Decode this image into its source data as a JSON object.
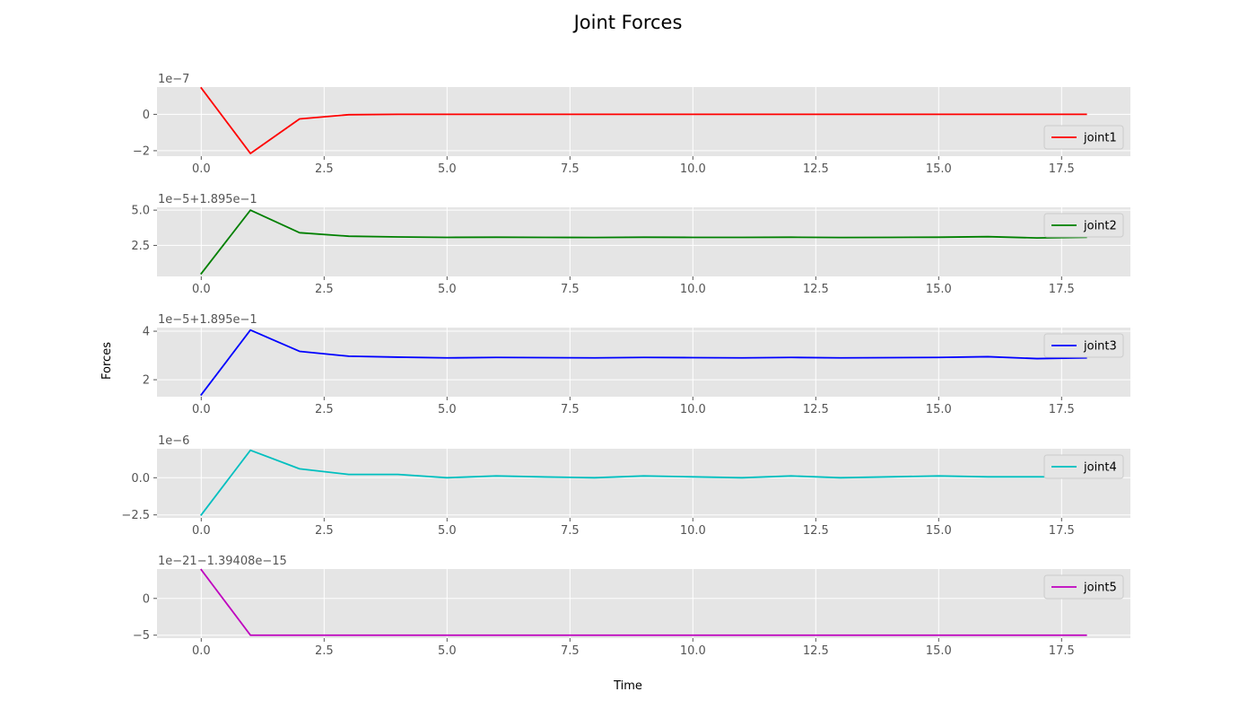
{
  "figure": {
    "title": "Joint Forces",
    "xlabel": "Time",
    "ylabel": "Forces"
  },
  "chart_data": [
    {
      "type": "line",
      "offset_label": "1e−7",
      "x": [
        0,
        1,
        2,
        3,
        4,
        5,
        6,
        7,
        8,
        9,
        10,
        11,
        12,
        13,
        14,
        15,
        16,
        17,
        18
      ],
      "series": [
        {
          "name": "joint1",
          "color": "#ff0000",
          "values": [
            1.45,
            -2.15,
            -0.25,
            -0.02,
            0.0,
            0.0,
            0.0,
            0.0,
            0.0,
            0.0,
            0.0,
            0.0,
            0.0,
            0.0,
            0.0,
            0.0,
            0.0,
            0.0,
            0.0
          ]
        }
      ],
      "xlim": [
        -0.9,
        18.9
      ],
      "ylim": [
        -2.3,
        1.5
      ],
      "xticks": [
        0,
        2.5,
        5,
        7.5,
        10,
        12.5,
        15,
        17.5
      ],
      "xtick_labels": [
        "0.0",
        "2.5",
        "5.0",
        "7.5",
        "10.0",
        "12.5",
        "15.0",
        "17.5"
      ],
      "yticks": [
        -2,
        0
      ],
      "ytick_labels": [
        "−2",
        "0"
      ],
      "legend": "lower-right",
      "grid": true
    },
    {
      "type": "line",
      "offset_label": "1e−5+1.895e−1",
      "x": [
        0,
        1,
        2,
        3,
        4,
        5,
        6,
        7,
        8,
        9,
        10,
        11,
        12,
        13,
        14,
        15,
        16,
        17,
        18
      ],
      "series": [
        {
          "name": "joint2",
          "color": "#008000",
          "values": [
            0.5,
            5.0,
            3.4,
            3.15,
            3.1,
            3.07,
            3.08,
            3.07,
            3.06,
            3.08,
            3.07,
            3.07,
            3.08,
            3.06,
            3.07,
            3.08,
            3.12,
            3.03,
            3.08
          ]
        }
      ],
      "xlim": [
        -0.9,
        18.9
      ],
      "ylim": [
        0.3,
        5.2
      ],
      "xticks": [
        0,
        2.5,
        5,
        7.5,
        10,
        12.5,
        15,
        17.5
      ],
      "xtick_labels": [
        "0.0",
        "2.5",
        "5.0",
        "7.5",
        "10.0",
        "12.5",
        "15.0",
        "17.5"
      ],
      "yticks": [
        2.5,
        5.0
      ],
      "ytick_labels": [
        "2.5",
        "5.0"
      ],
      "legend": "upper-right",
      "grid": true
    },
    {
      "type": "line",
      "offset_label": "1e−5+1.895e−1",
      "x": [
        0,
        1,
        2,
        3,
        4,
        5,
        6,
        7,
        8,
        9,
        10,
        11,
        12,
        13,
        14,
        15,
        16,
        17,
        18
      ],
      "series": [
        {
          "name": "joint3",
          "color": "#0000ff",
          "values": [
            1.38,
            4.05,
            3.17,
            2.97,
            2.93,
            2.9,
            2.92,
            2.91,
            2.9,
            2.92,
            2.91,
            2.9,
            2.92,
            2.9,
            2.91,
            2.92,
            2.95,
            2.87,
            2.9
          ]
        }
      ],
      "xlim": [
        -0.9,
        18.9
      ],
      "ylim": [
        1.3,
        4.15
      ],
      "xticks": [
        0,
        2.5,
        5,
        7.5,
        10,
        12.5,
        15,
        17.5
      ],
      "xtick_labels": [
        "0.0",
        "2.5",
        "5.0",
        "7.5",
        "10.0",
        "12.5",
        "15.0",
        "17.5"
      ],
      "yticks": [
        2,
        4
      ],
      "ytick_labels": [
        "2",
        "4"
      ],
      "legend": "upper-right",
      "grid": true
    },
    {
      "type": "line",
      "offset_label": "1e−6",
      "x": [
        0,
        1,
        2,
        3,
        4,
        5,
        6,
        7,
        8,
        9,
        10,
        11,
        12,
        13,
        14,
        15,
        16,
        17,
        18
      ],
      "series": [
        {
          "name": "joint4",
          "color": "#00bfbf",
          "values": [
            -2.5,
            1.85,
            0.6,
            0.22,
            0.22,
            0.0,
            0.12,
            0.05,
            0.0,
            0.12,
            0.06,
            0.0,
            0.12,
            0.0,
            0.06,
            0.12,
            0.06,
            0.06,
            0.05
          ]
        }
      ],
      "xlim": [
        -0.9,
        18.9
      ],
      "ylim": [
        -2.7,
        1.95
      ],
      "xticks": [
        0,
        2.5,
        5,
        7.5,
        10,
        12.5,
        15,
        17.5
      ],
      "xtick_labels": [
        "0.0",
        "2.5",
        "5.0",
        "7.5",
        "10.0",
        "12.5",
        "15.0",
        "17.5"
      ],
      "yticks": [
        -2.5,
        0.0
      ],
      "ytick_labels": [
        "−2.5",
        "0.0"
      ],
      "legend": "upper-right",
      "grid": true
    },
    {
      "type": "line",
      "offset_label": "1e−21−1.39408e−15",
      "x": [
        0,
        1,
        2,
        3,
        4,
        5,
        6,
        7,
        8,
        9,
        10,
        11,
        12,
        13,
        14,
        15,
        16,
        17,
        18
      ],
      "series": [
        {
          "name": "joint5",
          "color": "#bf00bf",
          "values": [
            3.9,
            -5.0,
            -5.0,
            -5.0,
            -5.0,
            -5.0,
            -5.0,
            -5.0,
            -5.0,
            -5.0,
            -5.0,
            -5.0,
            -5.0,
            -5.0,
            -5.0,
            -5.0,
            -5.0,
            -5.0,
            -5.0
          ]
        }
      ],
      "xlim": [
        -0.9,
        18.9
      ],
      "ylim": [
        -5.4,
        4.0
      ],
      "xticks": [
        0,
        2.5,
        5,
        7.5,
        10,
        12.5,
        15,
        17.5
      ],
      "xtick_labels": [
        "0.0",
        "2.5",
        "5.0",
        "7.5",
        "10.0",
        "12.5",
        "15.0",
        "17.5"
      ],
      "yticks": [
        -5,
        0
      ],
      "ytick_labels": [
        "−5",
        "0"
      ],
      "legend": "upper-right",
      "grid": true
    }
  ]
}
